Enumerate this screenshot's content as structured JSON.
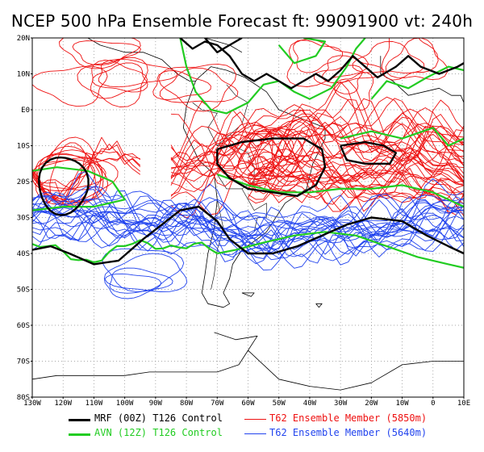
{
  "title": "NCEP 500 hPa Ensemble Forecast  ft: 99091900 vt: 240h",
  "map": {
    "lon_range": [
      -130,
      10
    ],
    "lat_range": [
      -80,
      20
    ],
    "lat_ticks": [
      {
        "lat": 20,
        "label": "20N"
      },
      {
        "lat": 10,
        "label": "10N"
      },
      {
        "lat": 0,
        "label": "E0"
      },
      {
        "lat": -10,
        "label": "10S"
      },
      {
        "lat": -20,
        "label": "20S"
      },
      {
        "lat": -30,
        "label": "30S"
      },
      {
        "lat": -40,
        "label": "40S"
      },
      {
        "lat": -50,
        "label": "50S"
      },
      {
        "lat": -60,
        "label": "60S"
      },
      {
        "lat": -70,
        "label": "70S"
      },
      {
        "lat": -80,
        "label": "80S"
      }
    ],
    "lon_ticks": [
      {
        "lon": -130,
        "label": "130W"
      },
      {
        "lon": -120,
        "label": "120W"
      },
      {
        "lon": -110,
        "label": "110W"
      },
      {
        "lon": -100,
        "label": "100W"
      },
      {
        "lon": -90,
        "label": "90W"
      },
      {
        "lon": -80,
        "label": "80W"
      },
      {
        "lon": -70,
        "label": "70W"
      },
      {
        "lon": -60,
        "label": "60W"
      },
      {
        "lon": -50,
        "label": "50W"
      },
      {
        "lon": -40,
        "label": "40W"
      },
      {
        "lon": -30,
        "label": "30W"
      },
      {
        "lon": -20,
        "label": "20W"
      },
      {
        "lon": -10,
        "label": "10W"
      },
      {
        "lon": 0,
        "label": "0"
      },
      {
        "lon": 10,
        "label": "10E"
      }
    ],
    "grid": "dotted"
  },
  "colors": {
    "mrf": "#000000",
    "avn": "#22cc22",
    "red": "#ee1111",
    "blue": "#2244ee",
    "coast": "#000000"
  },
  "legend": [
    {
      "label": "MRF (00Z) T126 Control",
      "color": "#000000"
    },
    {
      "label": "T62 Ensemble Member (5850m)",
      "color": "#ee1111"
    },
    {
      "label": "AVN (12Z) T126 Control",
      "color": "#22cc22"
    },
    {
      "label": "T62 Ensemble Member (5640m)",
      "color": "#2244ee"
    }
  ]
}
